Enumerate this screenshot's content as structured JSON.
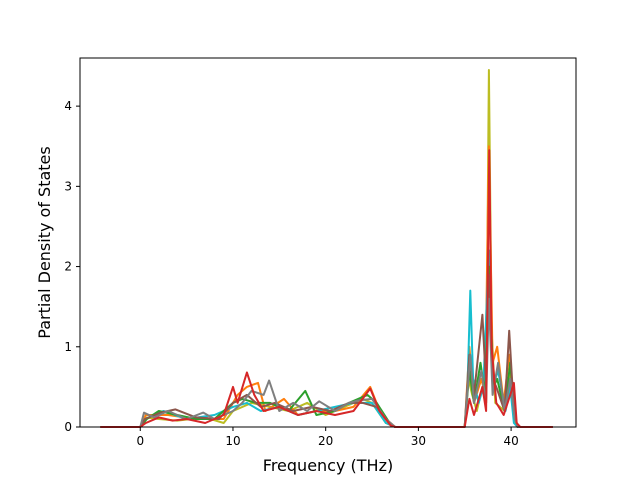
{
  "chart_data": {
    "type": "line",
    "xlabel": "Frequency (THz)",
    "ylabel": "Partial Density of States",
    "xlim": [
      -6.5,
      47
    ],
    "ylim": [
      0,
      4.6
    ],
    "x_ticks": [
      {
        "value": 0,
        "label": "0"
      },
      {
        "value": 10,
        "label": "10"
      },
      {
        "value": 20,
        "label": "20"
      },
      {
        "value": 30,
        "label": "30"
      },
      {
        "value": 40,
        "label": "40"
      }
    ],
    "y_ticks": [
      {
        "value": 0,
        "label": "0"
      },
      {
        "value": 1,
        "label": "1"
      },
      {
        "value": 2,
        "label": "2"
      },
      {
        "value": 3,
        "label": "3"
      },
      {
        "value": 4,
        "label": "4"
      }
    ],
    "grid": false,
    "series": [
      {
        "color": "#bcbd22",
        "points": [
          [
            -4.3,
            0
          ],
          [
            0,
            0
          ],
          [
            0.5,
            0.12
          ],
          [
            2,
            0.1
          ],
          [
            4,
            0.08
          ],
          [
            7,
            0.12
          ],
          [
            9,
            0.05
          ],
          [
            10,
            0.2
          ],
          [
            12,
            0.3
          ],
          [
            14,
            0.25
          ],
          [
            16,
            0.2
          ],
          [
            18,
            0.3
          ],
          [
            20,
            0.15
          ],
          [
            22,
            0.25
          ],
          [
            24,
            0.35
          ],
          [
            25,
            0.3
          ],
          [
            26.5,
            0.05
          ],
          [
            27.5,
            0
          ],
          [
            35,
            0
          ],
          [
            35.4,
            0.6
          ],
          [
            35.8,
            0.4
          ],
          [
            36.3,
            0.2
          ],
          [
            36.9,
            0.5
          ],
          [
            37.3,
            0.3
          ],
          [
            37.6,
            4.45
          ],
          [
            37.9,
            1.2
          ],
          [
            38.3,
            0.3
          ],
          [
            39.3,
            0.2
          ],
          [
            39.9,
            0.7
          ],
          [
            40.4,
            0.05
          ],
          [
            40.8,
            0
          ],
          [
            44.5,
            0
          ]
        ]
      },
      {
        "color": "#ff7f0e",
        "points": [
          [
            -4.3,
            0
          ],
          [
            0,
            0
          ],
          [
            0.6,
            0.15
          ],
          [
            3,
            0.15
          ],
          [
            6,
            0.1
          ],
          [
            9,
            0.1
          ],
          [
            10.5,
            0.4
          ],
          [
            11.5,
            0.5
          ],
          [
            12.7,
            0.55
          ],
          [
            13.5,
            0.2
          ],
          [
            15.5,
            0.35
          ],
          [
            17,
            0.15
          ],
          [
            19,
            0.2
          ],
          [
            21,
            0.2
          ],
          [
            23,
            0.25
          ],
          [
            24.8,
            0.5
          ],
          [
            26,
            0.15
          ],
          [
            27.5,
            0
          ],
          [
            35,
            0
          ],
          [
            35.5,
            1.0
          ],
          [
            36,
            0.3
          ],
          [
            36.8,
            0.6
          ],
          [
            37.2,
            0.4
          ],
          [
            37.6,
            3.5
          ],
          [
            38,
            0.8
          ],
          [
            38.5,
            1.0
          ],
          [
            39.2,
            0.3
          ],
          [
            39.8,
            0.9
          ],
          [
            40.3,
            0.2
          ],
          [
            40.7,
            0
          ],
          [
            44.5,
            0
          ]
        ]
      },
      {
        "color": "#17becf",
        "points": [
          [
            -4.3,
            0
          ],
          [
            0,
            0
          ],
          [
            0.5,
            0.1
          ],
          [
            2.5,
            0.2
          ],
          [
            5,
            0.1
          ],
          [
            8,
            0.15
          ],
          [
            10,
            0.25
          ],
          [
            11.5,
            0.3
          ],
          [
            13,
            0.2
          ],
          [
            15,
            0.25
          ],
          [
            17,
            0.15
          ],
          [
            19,
            0.2
          ],
          [
            21,
            0.25
          ],
          [
            23,
            0.3
          ],
          [
            25,
            0.3
          ],
          [
            26.5,
            0.05
          ],
          [
            27.5,
            0
          ],
          [
            35,
            0
          ],
          [
            35.3,
            0.5
          ],
          [
            35.6,
            1.7
          ],
          [
            35.9,
            0.6
          ],
          [
            36.5,
            0.3
          ],
          [
            37,
            0.5
          ],
          [
            37.6,
            2.2
          ],
          [
            38,
            0.5
          ],
          [
            38.6,
            0.7
          ],
          [
            39.4,
            0.2
          ],
          [
            39.9,
            0.5
          ],
          [
            40.3,
            0.05
          ],
          [
            40.7,
            0
          ],
          [
            44.5,
            0
          ]
        ]
      },
      {
        "color": "#2ca02c",
        "points": [
          [
            -4.3,
            0
          ],
          [
            0,
            0
          ],
          [
            0.7,
            0.1
          ],
          [
            2,
            0.2
          ],
          [
            4,
            0.15
          ],
          [
            6,
            0.1
          ],
          [
            8,
            0.1
          ],
          [
            10,
            0.3
          ],
          [
            11,
            0.35
          ],
          [
            12.5,
            0.3
          ],
          [
            14,
            0.3
          ],
          [
            16,
            0.2
          ],
          [
            17.8,
            0.45
          ],
          [
            19,
            0.15
          ],
          [
            21,
            0.2
          ],
          [
            22.5,
            0.3
          ],
          [
            24.5,
            0.4
          ],
          [
            25.5,
            0.3
          ],
          [
            27,
            0.03
          ],
          [
            27.5,
            0
          ],
          [
            35,
            0
          ],
          [
            35.5,
            0.7
          ],
          [
            36,
            0.3
          ],
          [
            36.7,
            0.8
          ],
          [
            37.2,
            0.4
          ],
          [
            37.6,
            2.0
          ],
          [
            38.1,
            0.5
          ],
          [
            38.5,
            0.6
          ],
          [
            39.3,
            0.2
          ],
          [
            39.9,
            0.8
          ],
          [
            40.4,
            0.1
          ],
          [
            40.8,
            0
          ],
          [
            44.5,
            0
          ]
        ]
      },
      {
        "color": "#8c564b",
        "points": [
          [
            -4.3,
            0
          ],
          [
            0,
            0
          ],
          [
            0.5,
            0.1
          ],
          [
            2.2,
            0.18
          ],
          [
            3.8,
            0.22
          ],
          [
            6,
            0.12
          ],
          [
            8.5,
            0.1
          ],
          [
            10,
            0.3
          ],
          [
            11.5,
            0.4
          ],
          [
            13,
            0.25
          ],
          [
            14.5,
            0.3
          ],
          [
            16.5,
            0.2
          ],
          [
            18.5,
            0.25
          ],
          [
            20.5,
            0.2
          ],
          [
            22.5,
            0.3
          ],
          [
            24,
            0.3
          ],
          [
            25.5,
            0.25
          ],
          [
            27,
            0.03
          ],
          [
            27.5,
            0
          ],
          [
            35,
            0
          ],
          [
            35.5,
            0.9
          ],
          [
            36,
            0.4
          ],
          [
            36.9,
            1.4
          ],
          [
            37.3,
            0.5
          ],
          [
            37.6,
            1.9
          ],
          [
            38,
            0.6
          ],
          [
            38.4,
            0.5
          ],
          [
            39.3,
            0.2
          ],
          [
            39.8,
            1.2
          ],
          [
            40.3,
            0.2
          ],
          [
            40.7,
            0
          ],
          [
            44.5,
            0
          ]
        ]
      },
      {
        "color": "#7f7f7f",
        "points": [
          [
            -4.3,
            0
          ],
          [
            0,
            0
          ],
          [
            0.4,
            0.18
          ],
          [
            1.5,
            0.12
          ],
          [
            3,
            0.2
          ],
          [
            5,
            0.1
          ],
          [
            6.8,
            0.18
          ],
          [
            8,
            0.1
          ],
          [
            10,
            0.2
          ],
          [
            11,
            0.3
          ],
          [
            12,
            0.45
          ],
          [
            13.3,
            0.4
          ],
          [
            13.9,
            0.58
          ],
          [
            15,
            0.2
          ],
          [
            16.5,
            0.3
          ],
          [
            18,
            0.2
          ],
          [
            19.3,
            0.32
          ],
          [
            21,
            0.2
          ],
          [
            22.5,
            0.3
          ],
          [
            23.5,
            0.33
          ],
          [
            25,
            0.35
          ],
          [
            26.5,
            0.1
          ],
          [
            27.5,
            0
          ],
          [
            35,
            0
          ],
          [
            35.6,
            0.9
          ],
          [
            36,
            0.3
          ],
          [
            36.8,
            0.7
          ],
          [
            37.3,
            0.3
          ],
          [
            37.6,
            1.6
          ],
          [
            38,
            0.4
          ],
          [
            38.6,
            0.8
          ],
          [
            39.3,
            0.2
          ],
          [
            39.9,
            0.6
          ],
          [
            40.4,
            0.1
          ],
          [
            40.8,
            0
          ],
          [
            44.5,
            0
          ]
        ]
      },
      {
        "color": "#d62728",
        "points": [
          [
            -4.3,
            0
          ],
          [
            0,
            0
          ],
          [
            0.6,
            0.05
          ],
          [
            2,
            0.12
          ],
          [
            3.5,
            0.08
          ],
          [
            5,
            0.1
          ],
          [
            7,
            0.05
          ],
          [
            9,
            0.15
          ],
          [
            10,
            0.5
          ],
          [
            10.5,
            0.3
          ],
          [
            11.5,
            0.68
          ],
          [
            12.3,
            0.4
          ],
          [
            13.3,
            0.2
          ],
          [
            15,
            0.25
          ],
          [
            17,
            0.15
          ],
          [
            19,
            0.2
          ],
          [
            21,
            0.15
          ],
          [
            23,
            0.2
          ],
          [
            24.8,
            0.48
          ],
          [
            25.8,
            0.2
          ],
          [
            27,
            0.02
          ],
          [
            27.5,
            0
          ],
          [
            35,
            0
          ],
          [
            35.5,
            0.35
          ],
          [
            36,
            0.15
          ],
          [
            36.9,
            0.5
          ],
          [
            37.3,
            0.2
          ],
          [
            37.65,
            3.45
          ],
          [
            37.9,
            1.0
          ],
          [
            38.4,
            0.3
          ],
          [
            39.2,
            0.15
          ],
          [
            39.9,
            0.4
          ],
          [
            40.3,
            0.55
          ],
          [
            40.6,
            0.05
          ],
          [
            41,
            0
          ],
          [
            44.5,
            0
          ]
        ]
      }
    ]
  }
}
